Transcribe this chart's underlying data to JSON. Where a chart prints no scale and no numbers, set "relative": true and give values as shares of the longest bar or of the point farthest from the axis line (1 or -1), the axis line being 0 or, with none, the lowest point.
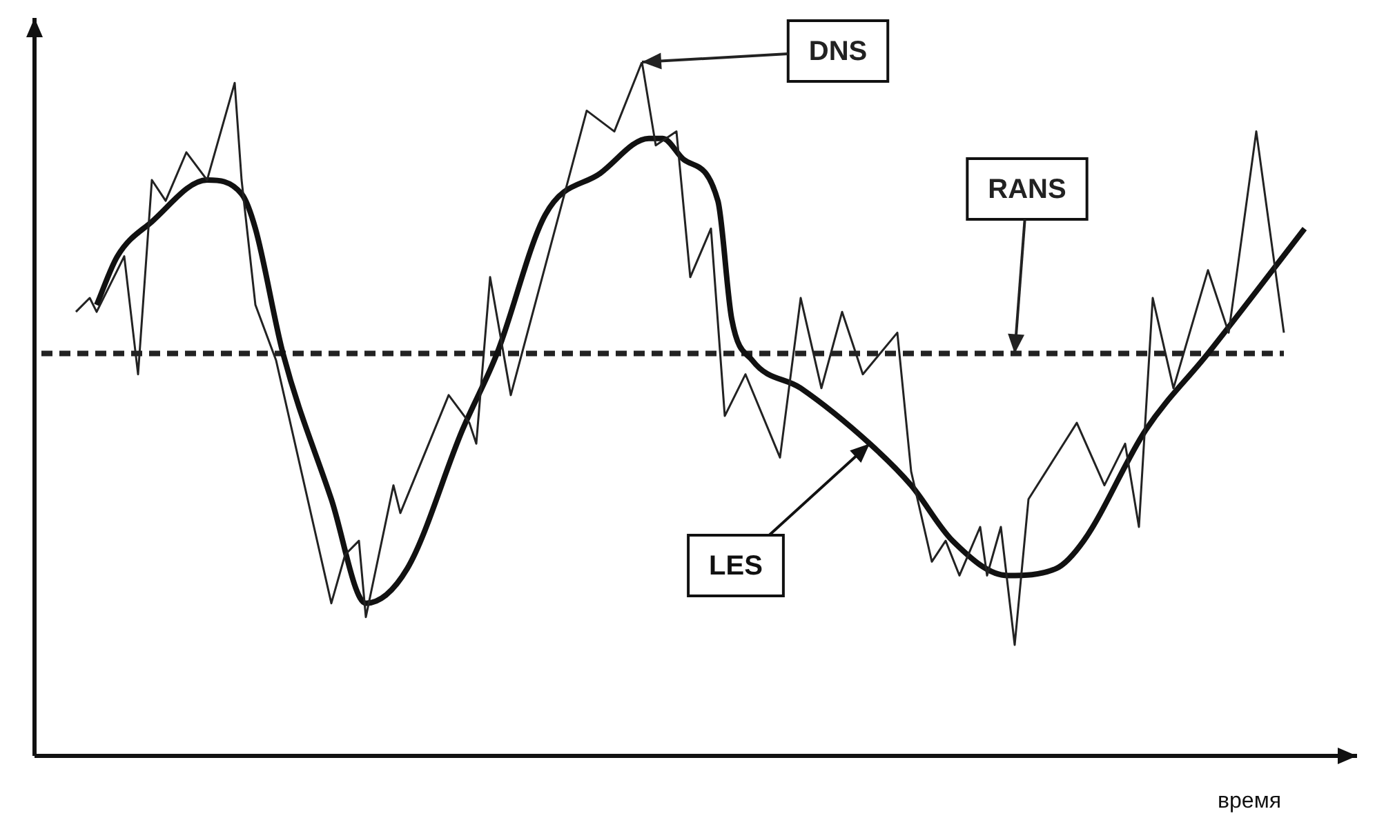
{
  "chart_data": {
    "type": "line",
    "xlabel": "время",
    "relative": true,
    "legend": false,
    "marker": "none",
    "categories": [
      null,
      null,
      null,
      null,
      null,
      null,
      null,
      null,
      null,
      null,
      null,
      null,
      null,
      null,
      null,
      null,
      null,
      null,
      null,
      null,
      null,
      null,
      null,
      null,
      null,
      null,
      null,
      null,
      null,
      null,
      null,
      null,
      null,
      null,
      null,
      null,
      null,
      null,
      null,
      null,
      null,
      null,
      null,
      null,
      null,
      null,
      null,
      null,
      null,
      null,
      null,
      null,
      null,
      null,
      null,
      null,
      null,
      null,
      null,
      null,
      null,
      null,
      null,
      null,
      null,
      null,
      null,
      null,
      null,
      null,
      null,
      null,
      null,
      null,
      null,
      null,
      null,
      null,
      null,
      null,
      null,
      null,
      null,
      null,
      null,
      null,
      null,
      null,
      null,
      null,
      null,
      null,
      null,
      null,
      null,
      null,
      null,
      null,
      null,
      null,
      null,
      null,
      null,
      null,
      null,
      null,
      null,
      null,
      null,
      null,
      null,
      null,
      null,
      null,
      null,
      null,
      null,
      null,
      null,
      null,
      null,
      null,
      null,
      null,
      null,
      null,
      null,
      null,
      null,
      null,
      null,
      null,
      null,
      null,
      null,
      null,
      null,
      null,
      null,
      null,
      null,
      null,
      null,
      null,
      null,
      null,
      null,
      null,
      null,
      null,
      null,
      null,
      null,
      null,
      null,
      null,
      null,
      null,
      null,
      null,
      null,
      null,
      null,
      null,
      null,
      null,
      null,
      null,
      null,
      null,
      null,
      null,
      null,
      null,
      null,
      null,
      null,
      null,
      null,
      null,
      null,
      null,
      null,
      null
    ],
    "series": [
      {
        "name": "DNS",
        "color": "#222222",
        "line_style": "solid",
        "values": [
          null,
          null,
          null,
          null,
          null,
          0.64,
          null,
          0.66,
          0.64,
          null,
          null,
          null,
          0.72,
          null,
          0.55,
          null,
          0.83,
          null,
          0.8,
          null,
          null,
          0.87,
          null,
          null,
          0.83,
          null,
          null,
          null,
          0.97,
          0.83,
          null,
          0.65,
          null,
          null,
          0.57,
          null,
          null,
          null,
          null,
          null,
          null,
          null,
          0.22,
          null,
          0.29,
          null,
          0.31,
          0.2,
          null,
          null,
          null,
          0.39,
          0.35,
          null,
          null,
          null,
          null,
          null,
          null,
          0.52,
          null,
          null,
          0.48,
          0.45,
          null,
          0.69,
          null,
          null,
          0.52,
          null,
          null,
          null,
          null,
          null,
          null,
          null,
          null,
          null,
          null,
          0.93,
          null,
          null,
          null,
          0.9,
          null,
          null,
          null,
          1,
          null,
          0.88,
          null,
          null,
          0.9,
          null,
          0.69,
          null,
          null,
          0.76,
          null,
          0.49,
          null,
          null,
          0.55,
          null,
          null,
          null,
          null,
          0.43,
          null,
          null,
          0.66,
          null,
          null,
          0.53,
          null,
          null,
          0.64,
          null,
          null,
          0.55,
          null,
          null,
          null,
          null,
          0.61,
          null,
          0.41,
          null,
          null,
          0.28,
          null,
          0.31,
          null,
          0.26,
          null,
          null,
          0.33,
          0.26,
          null,
          0.33,
          null,
          0.16,
          null,
          0.37,
          null,
          null,
          null,
          null,
          null,
          null,
          0.48,
          null,
          null,
          null,
          0.39,
          null,
          null,
          0.45,
          null,
          0.33,
          null,
          0.66,
          null,
          null,
          0.53,
          null,
          null,
          null,
          null,
          0.7,
          null,
          null,
          0.61,
          null,
          null,
          null,
          0.9,
          null,
          null,
          null,
          0.61,
          null,
          null,
          null
        ]
      },
      {
        "name": "LES",
        "color": "#111111",
        "line_style": "solid",
        "values": [
          null,
          null,
          null,
          null,
          null,
          null,
          null,
          null,
          0.65,
          null,
          null,
          0.72,
          null,
          null,
          null,
          null,
          0.77,
          null,
          null,
          null,
          null,
          null,
          null,
          null,
          0.83,
          null,
          null,
          null,
          null,
          0.81,
          null,
          0.76,
          null,
          null,
          null,
          0.58,
          null,
          null,
          null,
          null,
          null,
          null,
          0.37,
          null,
          null,
          null,
          null,
          0.22,
          null,
          null,
          null,
          null,
          null,
          0.27,
          null,
          null,
          null,
          null,
          null,
          null,
          null,
          0.47,
          null,
          null,
          null,
          null,
          0.58,
          null,
          null,
          null,
          null,
          null,
          null,
          0.78,
          null,
          null,
          null,
          null,
          null,
          null,
          null,
          0.84,
          null,
          null,
          null,
          null,
          null,
          null,
          0.89,
          null,
          0.89,
          null,
          null,
          0.86,
          null,
          null,
          null,
          null,
          0.8,
          null,
          0.63,
          null,
          null,
          0.57,
          null,
          null,
          null,
          null,
          null,
          null,
          0.53,
          null,
          null,
          null,
          null,
          null,
          null,
          null,
          null,
          null,
          0.45,
          null,
          null,
          null,
          null,
          null,
          0.39,
          null,
          null,
          null,
          null,
          null,
          0.31,
          null,
          null,
          null,
          null,
          null,
          null,
          null,
          0.26,
          null,
          null,
          null,
          null,
          null,
          null,
          0.27,
          null,
          null,
          null,
          0.31,
          null,
          null,
          null,
          null,
          null,
          null,
          null,
          null,
          0.47,
          null,
          null,
          null,
          null,
          null,
          null,
          null,
          null,
          0.58,
          null,
          null,
          null,
          null,
          null,
          null,
          null,
          null,
          null,
          null,
          null,
          null,
          null,
          0.76
        ]
      },
      {
        "name": "RANS",
        "color": "#222222",
        "line_style": "dashed",
        "values": [
          0.58,
          null,
          null,
          null,
          null,
          null,
          null,
          null,
          null,
          null,
          null,
          null,
          null,
          null,
          null,
          null,
          null,
          null,
          null,
          null,
          null,
          null,
          null,
          null,
          null,
          null,
          null,
          null,
          null,
          null,
          null,
          null,
          null,
          null,
          null,
          null,
          null,
          null,
          null,
          null,
          null,
          null,
          null,
          null,
          null,
          null,
          null,
          null,
          null,
          null,
          null,
          null,
          null,
          null,
          null,
          null,
          null,
          null,
          null,
          null,
          null,
          null,
          null,
          null,
          null,
          null,
          null,
          null,
          null,
          null,
          null,
          null,
          null,
          null,
          null,
          null,
          null,
          null,
          null,
          null,
          null,
          null,
          null,
          null,
          null,
          null,
          null,
          null,
          null,
          null,
          null,
          null,
          null,
          null,
          null,
          null,
          null,
          null,
          null,
          null,
          null,
          null,
          null,
          null,
          null,
          null,
          null,
          null,
          null,
          null,
          null,
          null,
          null,
          null,
          null,
          null,
          null,
          null,
          null,
          null,
          null,
          null,
          null,
          null,
          null,
          null,
          null,
          null,
          null,
          null,
          null,
          null,
          null,
          null,
          null,
          null,
          null,
          null,
          null,
          null,
          null,
          null,
          null,
          null,
          null,
          null,
          null,
          null,
          null,
          null,
          null,
          null,
          null,
          null,
          null,
          null,
          null,
          null,
          null,
          null,
          null,
          null,
          null,
          null,
          null,
          null,
          null,
          null,
          null,
          null,
          null,
          null,
          null,
          null,
          null,
          null,
          null,
          null,
          null,
          null,
          0.58,
          null,
          null,
          null
        ]
      }
    ]
  }
}
